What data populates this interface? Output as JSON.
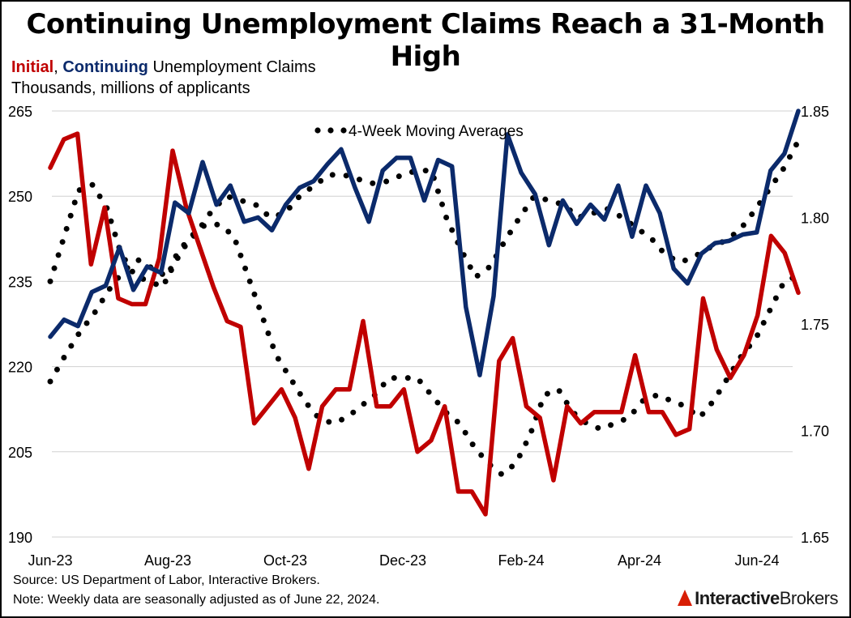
{
  "title": "Continuing Unemployment Claims Reach a 31-Month High",
  "subtitle": {
    "initial": "Initial",
    "sep": ", ",
    "continuing": "Continuing",
    "rest": " Unemployment Claims"
  },
  "units": "Thousands, millions of applicants",
  "legend_label": "4-Week Moving Averages",
  "source": "Source: US Department of Labor, Interactive Brokers.",
  "note": "Note: Weekly data are seasonally adjusted as of June 22, 2024.",
  "logo": {
    "bold": "Interactive",
    "rest": "Brokers"
  },
  "colors": {
    "initial": "#c00000",
    "continuing": "#0b2a6b",
    "moving_average": "#000000",
    "grid": "#d0d0d0"
  },
  "chart_data": {
    "type": "line",
    "x_tick_labels": [
      "Jun-23",
      "Aug-23",
      "Oct-23",
      "Dec-23",
      "Feb-24",
      "Apr-24",
      "Jun-24"
    ],
    "y_left": {
      "range": [
        190,
        265
      ],
      "ticks": [
        190,
        205,
        220,
        235,
        250,
        265
      ]
    },
    "y_right": {
      "range": [
        1.65,
        1.85
      ],
      "ticks": [
        "1.65",
        "1.70",
        "1.75",
        "1.80",
        "1.85"
      ]
    },
    "grid": true,
    "series": [
      {
        "name": "Initial",
        "axis": "left",
        "values": [
          255,
          260,
          261,
          238,
          248,
          232,
          231,
          231,
          239,
          258,
          248,
          241,
          234,
          228,
          227,
          210,
          213,
          216,
          211,
          202,
          213,
          216,
          216,
          228,
          213,
          213,
          216,
          205,
          207,
          213,
          198,
          198,
          194,
          221,
          225,
          213,
          211,
          200,
          213,
          210,
          212,
          212,
          212,
          222,
          212,
          212,
          208,
          209,
          232,
          223,
          218,
          222,
          229,
          243,
          240,
          233
        ]
      },
      {
        "name": "Continuing",
        "axis": "right",
        "values": [
          1.744,
          1.752,
          1.749,
          1.765,
          1.768,
          1.786,
          1.766,
          1.777,
          1.774,
          1.807,
          1.802,
          1.826,
          1.806,
          1.815,
          1.798,
          1.8,
          1.794,
          1.806,
          1.814,
          1.817,
          1.825,
          1.832,
          1.814,
          1.798,
          1.822,
          1.828,
          1.828,
          1.808,
          1.827,
          1.824,
          1.758,
          1.726,
          1.763,
          1.839,
          1.821,
          1.811,
          1.787,
          1.808,
          1.797,
          1.806,
          1.799,
          1.815,
          1.791,
          1.815,
          1.802,
          1.776,
          1.769,
          1.783,
          1.788,
          1.789,
          1.792,
          1.793,
          1.822,
          1.83,
          1.85
        ]
      },
      {
        "name": "Initial 4-week MA",
        "axis": "left",
        "style": "dotted",
        "values": [
          235,
          243,
          251,
          252,
          248,
          240,
          236,
          235,
          234,
          240,
          243,
          245,
          245,
          243,
          236,
          229,
          222,
          218,
          214,
          211,
          210,
          211,
          213,
          215,
          218,
          218,
          218,
          215,
          212,
          210,
          206,
          203,
          201,
          203,
          208,
          215,
          216,
          212,
          210,
          209,
          210,
          211,
          214,
          215,
          214,
          213,
          211,
          214,
          218,
          222,
          225,
          230,
          235,
          236
        ]
      },
      {
        "name": "Continuing 4-week MA",
        "axis": "right",
        "style": "dotted",
        "values": [
          1.723,
          1.735,
          1.746,
          1.755,
          1.766,
          1.775,
          1.78,
          1.776,
          1.772,
          1.785,
          1.793,
          1.803,
          1.81,
          1.808,
          1.806,
          1.8,
          1.802,
          1.81,
          1.815,
          1.82,
          1.82,
          1.818,
          1.816,
          1.817,
          1.82,
          1.822,
          1.822,
          1.8,
          1.785,
          1.772,
          1.777,
          1.789,
          1.8,
          1.81,
          1.808,
          1.806,
          1.8,
          1.802,
          1.804,
          1.8,
          1.795,
          1.79,
          1.782,
          1.779,
          1.782,
          1.786,
          1.789,
          1.794,
          1.803,
          1.813,
          1.823,
          1.836
        ]
      }
    ]
  }
}
